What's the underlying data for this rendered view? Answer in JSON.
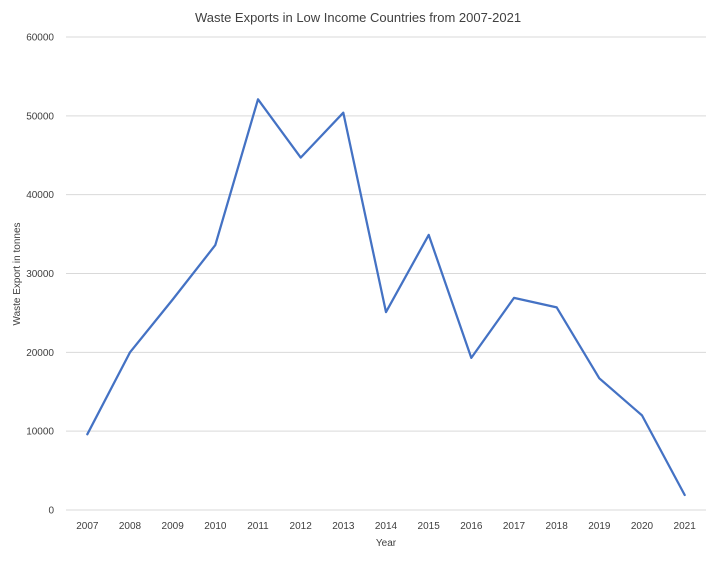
{
  "chart_data": {
    "type": "line",
    "title": "Waste Exports in Low Income Countries from 2007-2021",
    "xlabel": "Year",
    "ylabel": "Waste Export in tonnes",
    "categories": [
      "2007",
      "2008",
      "2009",
      "2010",
      "2011",
      "2012",
      "2013",
      "2014",
      "2015",
      "2016",
      "2017",
      "2018",
      "2019",
      "2020",
      "2021"
    ],
    "series": [
      {
        "values": [
          9600,
          20000,
          26700,
          33600,
          52100,
          44700,
          50400,
          25100,
          34900,
          19300,
          26900,
          25700,
          16700,
          12000,
          1900
        ]
      }
    ],
    "ylim": [
      0,
      60000
    ],
    "yticks": [
      "0",
      "10000",
      "20000",
      "30000",
      "40000",
      "50000",
      "60000"
    ],
    "grid": "horizontal",
    "legend": "none",
    "line_color": "#4472c4"
  }
}
